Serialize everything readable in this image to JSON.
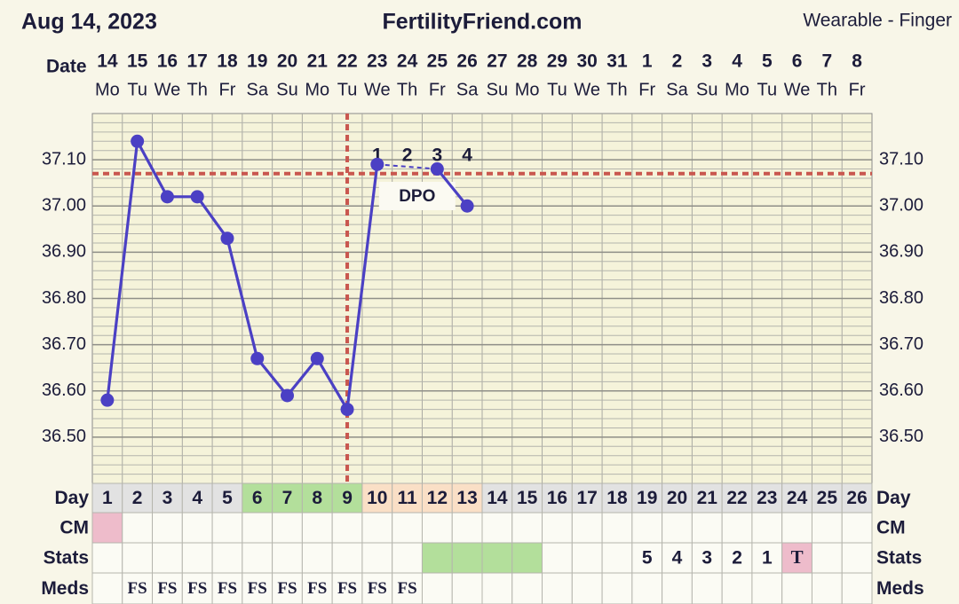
{
  "chart_data": {
    "type": "line",
    "date": "Aug 14, 2023",
    "title": "FertilityFriend.com",
    "source": "Wearable - Finger",
    "source_color": "#cf5f58",
    "date_label": "Date",
    "categories": [
      "14",
      "15",
      "16",
      "17",
      "18",
      "19",
      "20",
      "21",
      "22",
      "23",
      "24",
      "25",
      "26",
      "27",
      "28",
      "29",
      "30",
      "31",
      "1",
      "2",
      "3",
      "4",
      "5",
      "6",
      "7",
      "8"
    ],
    "weekdays": [
      "Mo",
      "Tu",
      "We",
      "Th",
      "Fr",
      "Sa",
      "Su",
      "Mo",
      "Tu",
      "We",
      "Th",
      "Fr",
      "Sa",
      "Su",
      "Mo",
      "Tu",
      "We",
      "Th",
      "Fr",
      "Sa",
      "Su",
      "Mo",
      "Tu",
      "We",
      "Th",
      "Fr"
    ],
    "values": [
      36.58,
      37.14,
      37.02,
      37.02,
      36.93,
      36.67,
      36.59,
      36.67,
      36.56,
      37.09,
      null,
      37.08,
      37.0,
      null,
      null,
      null,
      null,
      null,
      null,
      null,
      null,
      null,
      null,
      null,
      null,
      null
    ],
    "color": "#4b40c4",
    "ylim": [
      36.4,
      37.2
    ],
    "yticks": [
      {
        "value": 36.5,
        "label": "36.50"
      },
      {
        "value": 36.6,
        "label": "36.60"
      },
      {
        "value": 36.7,
        "label": "36.70"
      },
      {
        "value": 36.8,
        "label": "36.80"
      },
      {
        "value": 36.9,
        "label": "36.90"
      },
      {
        "value": 37.0,
        "label": "37.00"
      },
      {
        "value": 37.1,
        "label": "37.10"
      }
    ],
    "grid": true,
    "coverline": 37.07,
    "ovulation_cycle_day": 9,
    "marker_color": "#c9574f",
    "dpo_title": "DPO",
    "dpo_labels": [
      "1",
      "2",
      "3",
      "4"
    ],
    "rows": [
      {
        "label": "Day",
        "cells": [
          1,
          2,
          3,
          4,
          5,
          6,
          7,
          8,
          9,
          10,
          11,
          12,
          13,
          14,
          15,
          16,
          17,
          18,
          19,
          20,
          21,
          22,
          23,
          24,
          25,
          26
        ],
        "colors": [
          "#e2e2e2",
          "#e2e2e2",
          "#e2e2e2",
          "#e2e2e2",
          "#e2e2e2",
          "#b3df9b",
          "#b3df9b",
          "#b3df9b",
          "#b3df9b",
          "#fadfc6",
          "#fadfc6",
          "#fadfc6",
          "#fadfc6",
          "#e2e2e2",
          "#e2e2e2",
          "#e2e2e2",
          "#e2e2e2",
          "#e2e2e2",
          "#e2e2e2",
          "#e2e2e2",
          "#e2e2e2",
          "#e2e2e2",
          "#e2e2e2",
          "#e2e2e2",
          "#e2e2e2",
          "#e2e2e2"
        ]
      },
      {
        "label": "CM",
        "cells": [
          null,
          null,
          null,
          null,
          null,
          null,
          null,
          null,
          null,
          null,
          null,
          null,
          null,
          null,
          null,
          null,
          null,
          null,
          null,
          null,
          null,
          null,
          null,
          null,
          null,
          null
        ],
        "colors": [
          "#eebccb",
          null,
          null,
          null,
          null,
          null,
          null,
          null,
          null,
          null,
          null,
          null,
          null,
          null,
          null,
          null,
          null,
          null,
          null,
          null,
          null,
          null,
          null,
          null,
          null,
          null
        ]
      },
      {
        "label": "Stats",
        "cells": [
          null,
          null,
          null,
          null,
          null,
          null,
          null,
          null,
          null,
          null,
          null,
          null,
          null,
          null,
          null,
          null,
          null,
          null,
          "5",
          "4",
          "3",
          "2",
          "1",
          "T",
          null,
          null
        ],
        "colors": [
          null,
          null,
          null,
          null,
          null,
          null,
          null,
          null,
          null,
          null,
          null,
          "#b3df9b",
          "#b3df9b",
          "#b3df9b",
          "#b3df9b",
          null,
          null,
          null,
          null,
          null,
          null,
          null,
          null,
          "#eebccb",
          null,
          null
        ]
      },
      {
        "label": "Meds",
        "cells": [
          null,
          "FS",
          "FS",
          "FS",
          "FS",
          "FS",
          "FS",
          "FS",
          "FS",
          "FS",
          "FS",
          null,
          null,
          null,
          null,
          null,
          null,
          null,
          null,
          null,
          null,
          null,
          null,
          null,
          null,
          null
        ],
        "colors": [
          null,
          null,
          null,
          null,
          null,
          null,
          null,
          null,
          null,
          null,
          null,
          null,
          null,
          null,
          null,
          null,
          null,
          null,
          null,
          null,
          null,
          null,
          null,
          null,
          null,
          null
        ]
      }
    ]
  }
}
